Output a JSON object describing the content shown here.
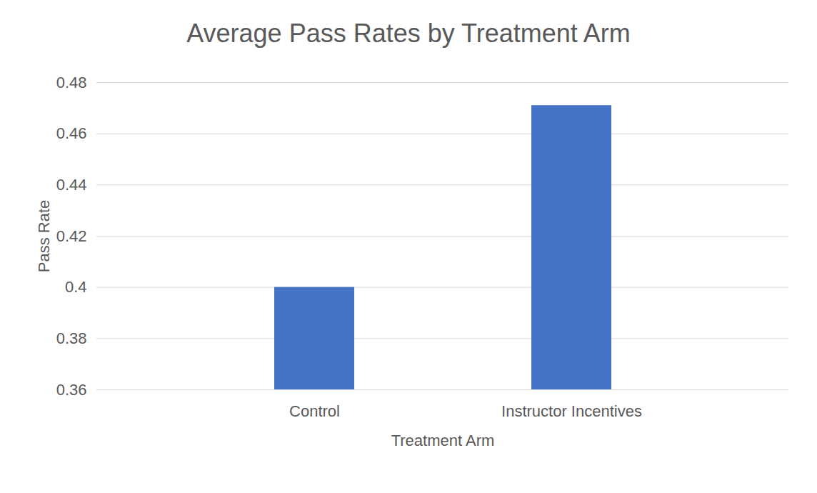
{
  "chart_data": {
    "type": "bar",
    "title": "Average Pass Rates by Treatment Arm",
    "x_label": "Treatment Arm",
    "y_label": "Pass Rate",
    "categories": [
      "Control",
      "Instructor Incentives"
    ],
    "values": [
      0.4,
      0.471
    ],
    "color": "#4472c4",
    "ylim": [
      0.36,
      0.48
    ],
    "yticks": [
      0.36,
      0.38,
      0.4,
      0.42,
      0.44,
      0.46,
      0.48
    ],
    "grid": true
  }
}
